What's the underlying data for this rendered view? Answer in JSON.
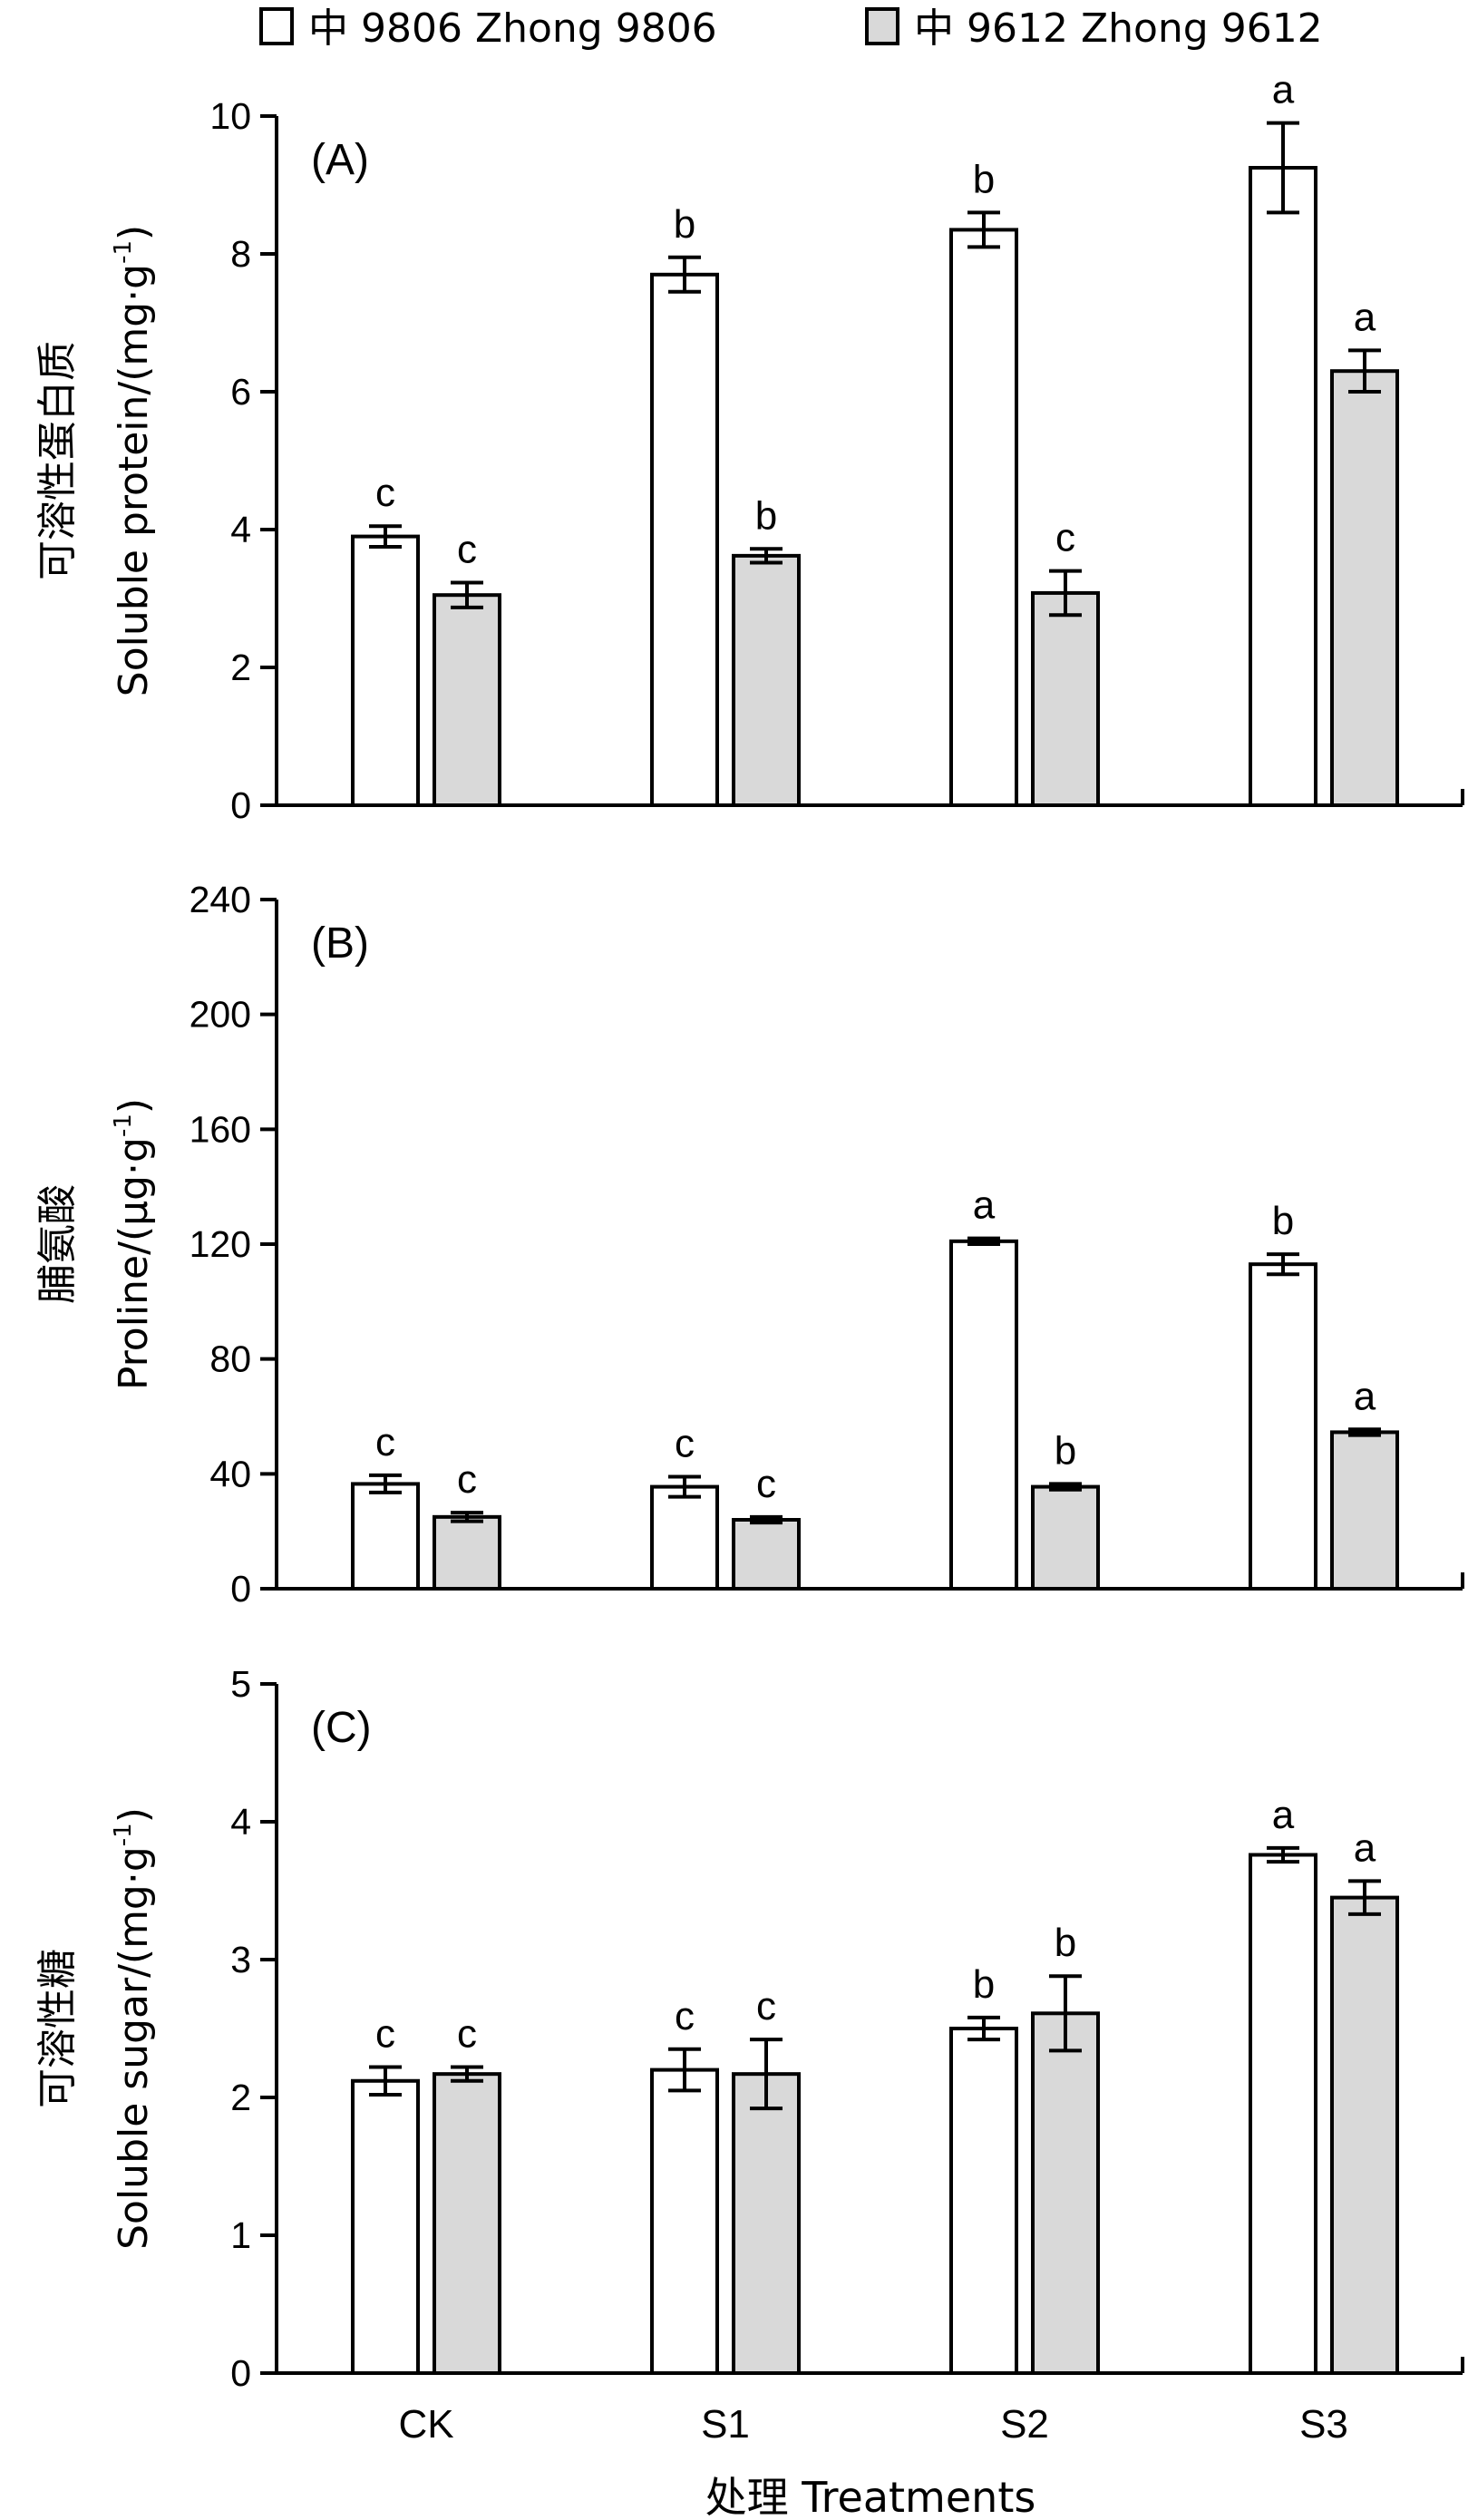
{
  "legend": {
    "items": [
      {
        "label": "中 9806 Zhong 9806",
        "fill": "#ffffff"
      },
      {
        "label": "中 9612 Zhong 9612",
        "fill": "#d9d9d9"
      }
    ]
  },
  "x_axis": {
    "label": "处理 Treatments",
    "categories": [
      "CK",
      "S1",
      "S2",
      "S3"
    ]
  },
  "colors": {
    "series1": "#ffffff",
    "series2": "#d9d9d9",
    "stroke": "#000000"
  },
  "chart_data": [
    {
      "type": "bar",
      "panel": "(A)",
      "ylabel_cn": "可溶性蛋白质",
      "ylabel_en": "Soluble protein/(mg·g",
      "ylabel_sup": "-1",
      "ylabel_close": ")",
      "ylim": [
        0,
        10
      ],
      "yticks": [
        "0",
        "2",
        "4",
        "6",
        "8",
        "10"
      ],
      "categories": [
        "CK",
        "S1",
        "S2",
        "S3"
      ],
      "series": [
        {
          "name": "中 9806 Zhong 9806",
          "values": [
            3.9,
            7.7,
            8.35,
            9.25
          ],
          "errors": [
            0.15,
            0.25,
            0.25,
            0.65
          ],
          "letters": [
            "c",
            "b",
            "b",
            "a"
          ]
        },
        {
          "name": "中 9612 Zhong 9612",
          "values": [
            3.05,
            3.62,
            3.08,
            6.3
          ],
          "errors": [
            0.18,
            0.1,
            0.32,
            0.3
          ],
          "letters": [
            "c",
            "b",
            "c",
            "a"
          ]
        }
      ]
    },
    {
      "type": "bar",
      "panel": "(B)",
      "ylabel_cn": "脯氨酸",
      "ylabel_en": "Proline/(μg·g",
      "ylabel_sup": "-1",
      "ylabel_close": ")",
      "ylim": [
        0,
        240
      ],
      "yticks": [
        "0",
        "40",
        "80",
        "120",
        "160",
        "200",
        "240"
      ],
      "categories": [
        "CK",
        "S1",
        "S2",
        "S3"
      ],
      "series": [
        {
          "name": "中 9806 Zhong 9806",
          "values": [
            36.5,
            35.5,
            121.0,
            113.0
          ],
          "errors": [
            3.0,
            3.5,
            1.0,
            3.5
          ],
          "letters": [
            "c",
            "c",
            "a",
            "b"
          ]
        },
        {
          "name": "中 9612 Zhong 9612",
          "values": [
            25.0,
            24.0,
            35.5,
            54.5
          ],
          "errors": [
            1.5,
            1.0,
            1.0,
            1.0
          ],
          "letters": [
            "c",
            "c",
            "b",
            "a"
          ]
        }
      ]
    },
    {
      "type": "bar",
      "panel": "(C)",
      "ylabel_cn": "可溶性糖",
      "ylabel_en": "Soluble sugar/(mg·g",
      "ylabel_sup": "-1",
      "ylabel_close": ")",
      "ylim": [
        0,
        5
      ],
      "yticks": [
        "0",
        "1",
        "2",
        "3",
        "4",
        "5"
      ],
      "categories": [
        "CK",
        "S1",
        "S2",
        "S3"
      ],
      "series": [
        {
          "name": "中 9806 Zhong 9806",
          "values": [
            2.12,
            2.2,
            2.5,
            3.76
          ],
          "errors": [
            0.1,
            0.15,
            0.08,
            0.05
          ],
          "letters": [
            "c",
            "c",
            "b",
            "a"
          ]
        },
        {
          "name": "中 9612 Zhong 9612",
          "values": [
            2.17,
            2.17,
            2.61,
            3.45
          ],
          "errors": [
            0.05,
            0.25,
            0.27,
            0.12
          ],
          "letters": [
            "c",
            "c",
            "b",
            "a"
          ]
        }
      ]
    }
  ]
}
